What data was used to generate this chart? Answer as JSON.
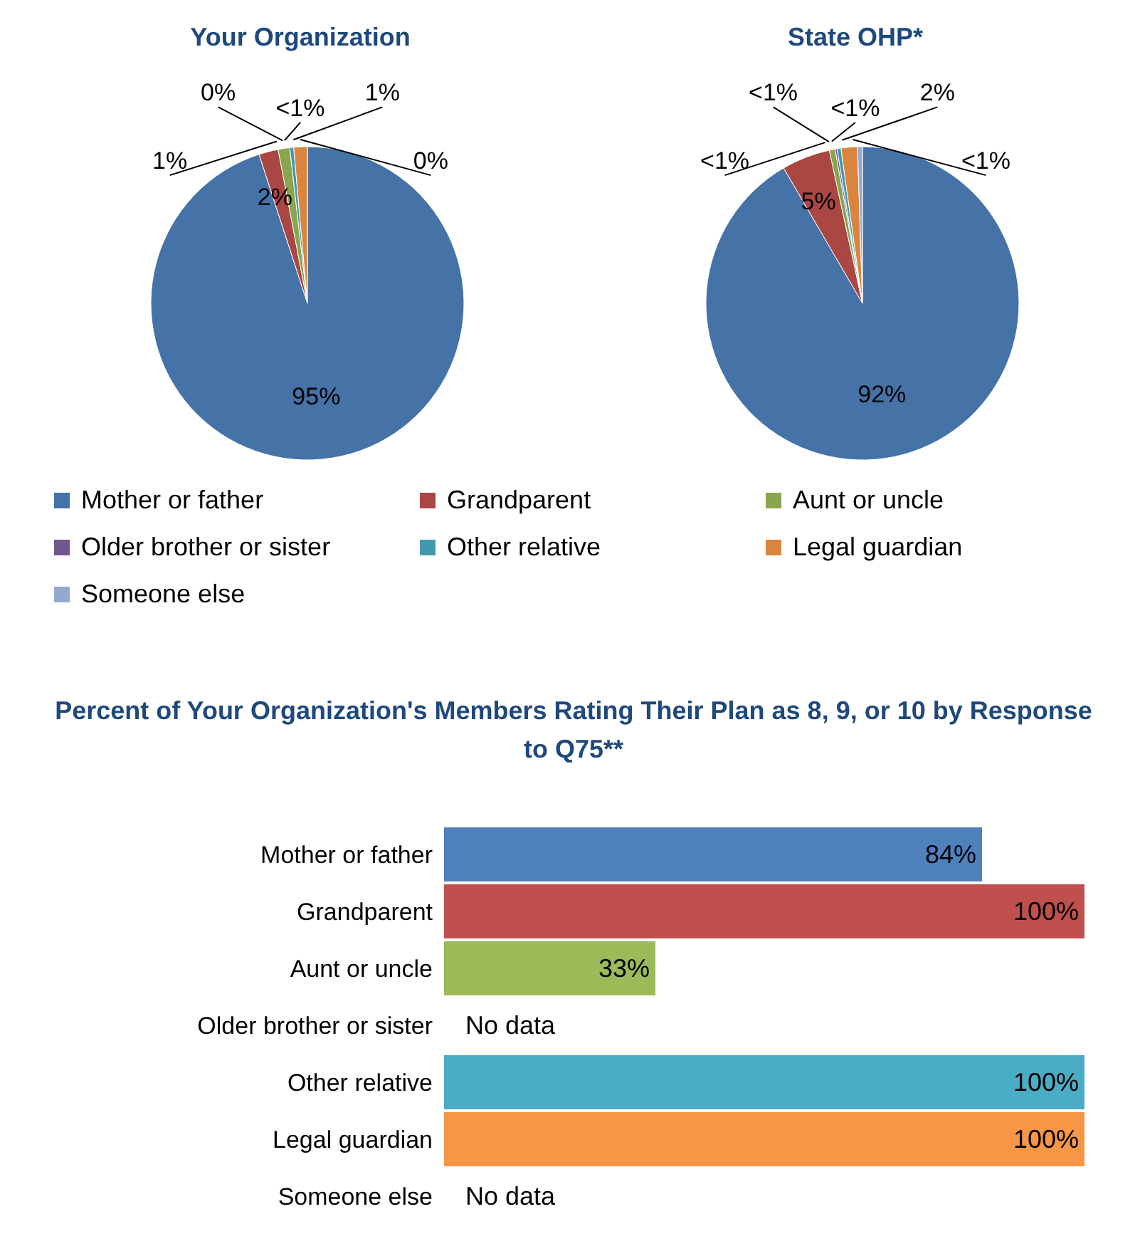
{
  "chart_data": [
    {
      "type": "pie",
      "title": "Your Organization",
      "categories": [
        "Mother or father",
        "Grandparent",
        "Aunt or uncle",
        "Older brother or sister",
        "Other relative",
        "Legal guardian",
        "Someone else"
      ],
      "values": [
        95,
        2,
        1.2,
        0,
        0.4,
        1.4,
        0
      ],
      "value_labels": [
        "95%",
        "2%",
        "1%",
        "0%",
        "<1%",
        "1%",
        "0%"
      ],
      "colors": [
        "#4572a7",
        "#aa4643",
        "#89a54e",
        "#71588f",
        "#4198af",
        "#db843d",
        "#93a9cf"
      ],
      "legend": "bottom"
    },
    {
      "type": "pie",
      "title": "State OHP*",
      "categories": [
        null,
        null,
        null,
        null,
        null,
        null,
        null
      ],
      "values": [
        91.6,
        5,
        0.6,
        0.2,
        0.4,
        1.7,
        0.5
      ],
      "value_labels": [
        "92%",
        "5%",
        "<1%",
        "<1%",
        "<1%",
        "2%",
        "<1%"
      ],
      "colors": [
        "#4572a7",
        "#aa4643",
        "#89a54e",
        "#71588f",
        "#4198af",
        "#db843d",
        "#93a9cf"
      ]
    },
    {
      "type": "bar",
      "orientation": "horizontal",
      "title": "Percent of Your Organization's Members Rating Their Plan as 8, 9, or 10 by Response to Q75**",
      "categories": [
        "Mother or father",
        "Grandparent",
        "Aunt or uncle",
        "Older brother or sister",
        "Other relative",
        "Legal guardian",
        "Someone else"
      ],
      "values": [
        84,
        100,
        33,
        null,
        100,
        100,
        null
      ],
      "value_labels": [
        "84%",
        "100%",
        "33%",
        "No data",
        "100%",
        "100%",
        "No data"
      ],
      "colors": [
        "#4f81bd",
        "#c0504d",
        "#9bbb59",
        "#8064a2",
        "#4bacc6",
        "#f79646",
        "#a5b6d9"
      ],
      "xlim": [
        0,
        100
      ]
    }
  ]
}
